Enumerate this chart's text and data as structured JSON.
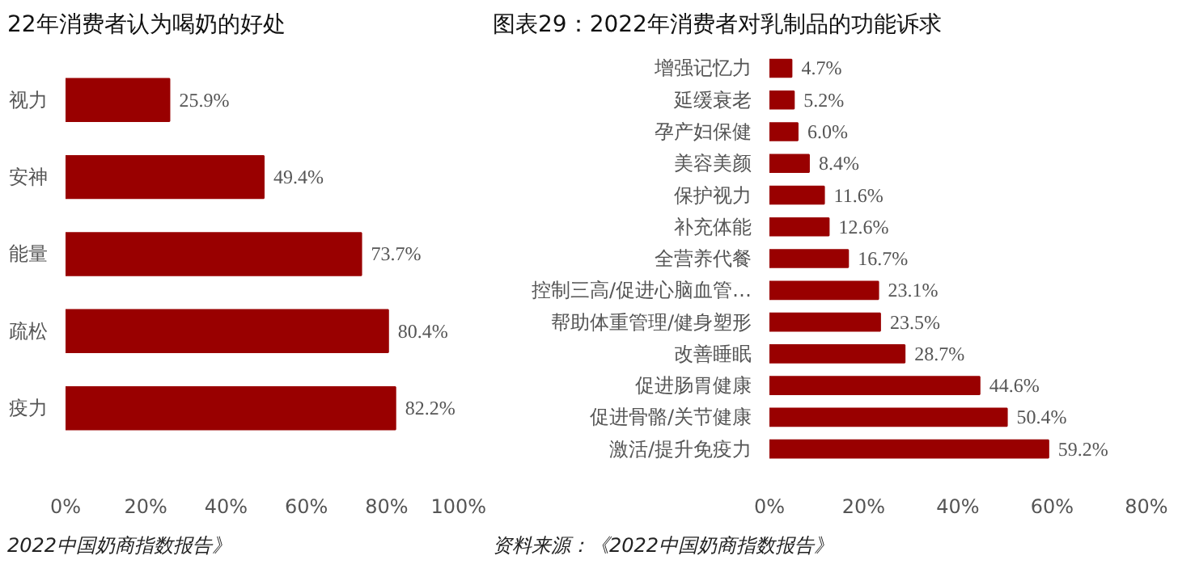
{
  "chart_data": [
    {
      "type": "bar",
      "orientation": "horizontal",
      "title": "22年消费者认为喝奶的好处",
      "categories": [
        "视力",
        "安神",
        "能量",
        "疏松",
        "疫力"
      ],
      "values": [
        25.9,
        49.4,
        73.7,
        80.4,
        82.2
      ],
      "color": "#990000",
      "value_labels": [
        "25.9%",
        "49.4%",
        "73.7%",
        "80.4%",
        "82.2%"
      ],
      "xlim": [
        0,
        100
      ],
      "xticks": [
        {
          "value": 0,
          "label": "0%"
        },
        {
          "value": 20,
          "label": "20%"
        },
        {
          "value": 40,
          "label": "40%"
        },
        {
          "value": 60,
          "label": "60%"
        },
        {
          "value": 80,
          "label": "80%"
        },
        {
          "value": 100,
          "label": "100%"
        }
      ],
      "annotations": [
        "2022中国奶商指数报告》"
      ]
    },
    {
      "type": "bar",
      "orientation": "horizontal",
      "title": "图表29：2022年消费者对乳制品的功能诉求",
      "categories": [
        "增强记忆力",
        "延缓衰老",
        "孕产妇保健",
        "美容美颜",
        "保护视力",
        "补充体能",
        "全营养代餐",
        "控制三高/促进心脑血管…",
        "帮助体重管理/健身塑形",
        "改善睡眠",
        "促进肠胃健康",
        "促进骨骼/关节健康",
        "激活/提升免疫力"
      ],
      "values": [
        4.7,
        5.2,
        6.0,
        8.4,
        11.6,
        12.6,
        16.7,
        23.1,
        23.5,
        28.7,
        44.6,
        50.4,
        59.2
      ],
      "color": "#990000",
      "value_labels": [
        "4.7%",
        "5.2%",
        "6.0%",
        "8.4%",
        "11.6%",
        "12.6%",
        "16.7%",
        "23.1%",
        "23.5%",
        "28.7%",
        "44.6%",
        "50.4%",
        "59.2%"
      ],
      "xlim": [
        0,
        80
      ],
      "xticks": [
        {
          "value": 0,
          "label": "0%"
        },
        {
          "value": 20,
          "label": "20%"
        },
        {
          "value": 40,
          "label": "40%"
        },
        {
          "value": 60,
          "label": "60%"
        },
        {
          "value": 80,
          "label": "80%"
        }
      ],
      "annotations": [
        "资料来源：《2022中国奶商指数报告》"
      ]
    }
  ]
}
